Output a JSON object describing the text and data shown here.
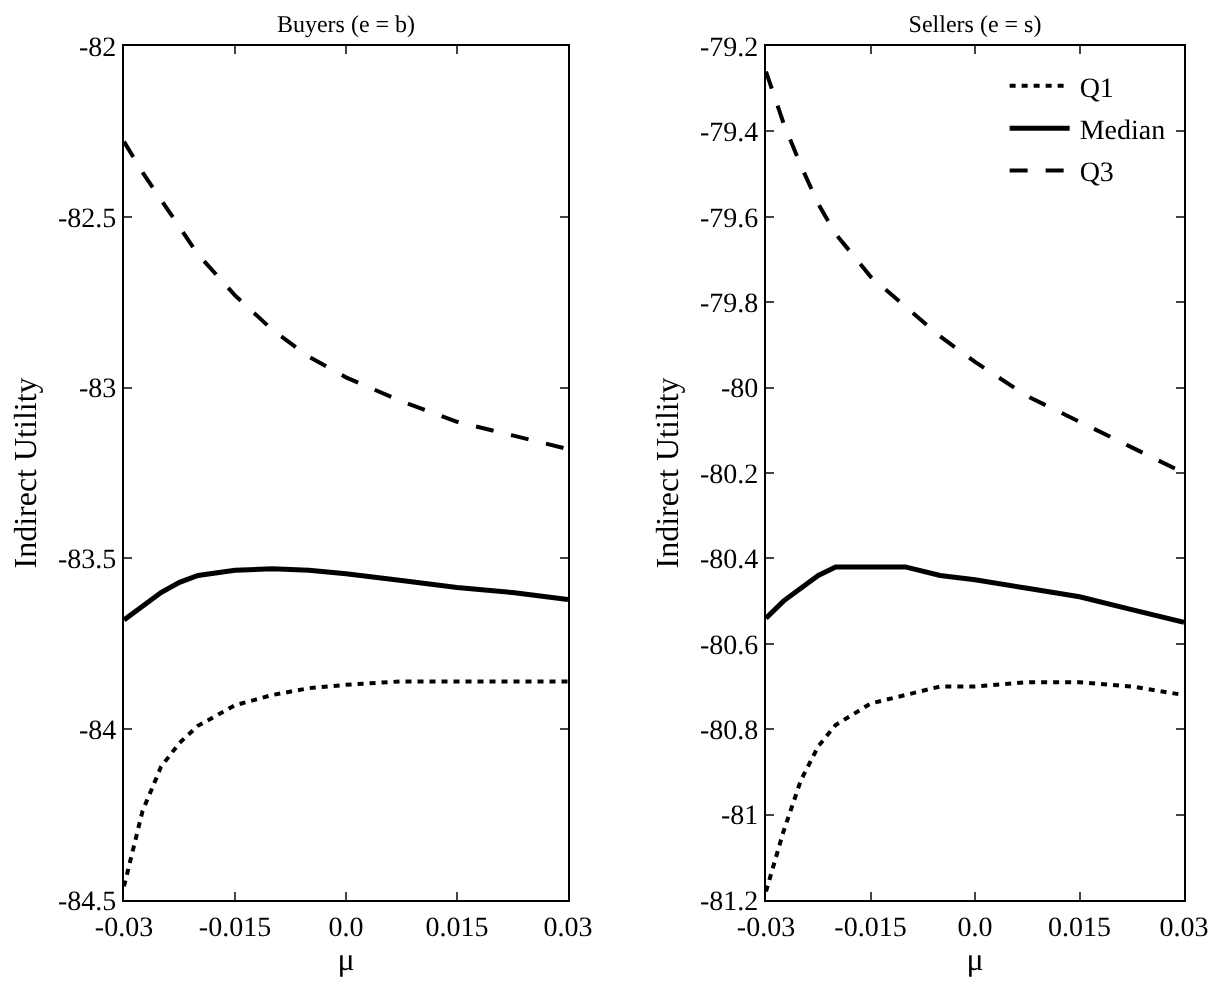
{
  "chart_data": [
    {
      "type": "line",
      "title": "Buyers (e = b)",
      "xlabel": "μ",
      "ylabel": "Indirect Utility",
      "xlim": [
        -0.03,
        0.03
      ],
      "xticks": [
        {
          "value": -0.03,
          "label": "-0.03"
        },
        {
          "value": -0.015,
          "label": "-0.015"
        },
        {
          "value": 0,
          "label": "0.0"
        },
        {
          "value": 0.015,
          "label": "0.015"
        },
        {
          "value": 0.03,
          "label": "0.03"
        }
      ],
      "ylim": [
        -84.5,
        -82
      ],
      "yticks": [
        -84.5,
        -84,
        -83.5,
        -83,
        -82.5,
        -82
      ],
      "grid": false,
      "legend": false,
      "marker": "none",
      "series": [
        {
          "color": "#000000",
          "line_style": "dotted",
          "x": [
            -0.03,
            -0.0275,
            -0.025,
            -0.0225,
            -0.02,
            -0.015,
            -0.01,
            -0.005,
            0,
            0.0075,
            0.015,
            0.0225,
            0.03
          ],
          "values": [
            -84.46,
            -84.24,
            -84.11,
            -84.04,
            -83.99,
            -83.93,
            -83.9,
            -83.88,
            -83.87,
            -83.86,
            -83.86,
            -83.86,
            -83.86
          ]
        },
        {
          "color": "#000000",
          "line_style": "solid",
          "x": [
            -0.03,
            -0.0275,
            -0.025,
            -0.0225,
            -0.02,
            -0.015,
            -0.01,
            -0.005,
            0,
            0.0075,
            0.015,
            0.0225,
            0.03
          ],
          "values": [
            -83.68,
            -83.64,
            -83.6,
            -83.57,
            -83.55,
            -83.535,
            -83.53,
            -83.535,
            -83.545,
            -83.565,
            -83.585,
            -83.6,
            -83.62
          ]
        },
        {
          "color": "#000000",
          "line_style": "dashed",
          "x": [
            -0.03,
            -0.0275,
            -0.025,
            -0.0225,
            -0.02,
            -0.015,
            -0.01,
            -0.005,
            0,
            0.0075,
            0.015,
            0.0225,
            0.03
          ],
          "values": [
            -82.28,
            -82.37,
            -82.45,
            -82.53,
            -82.61,
            -82.73,
            -82.83,
            -82.91,
            -82.97,
            -83.04,
            -83.1,
            -83.14,
            -83.18
          ]
        }
      ]
    },
    {
      "type": "line",
      "title": "Sellers (e = s)",
      "xlabel": "μ",
      "ylabel": "Indirect Utility",
      "xlim": [
        -0.03,
        0.03
      ],
      "xticks": [
        {
          "value": -0.03,
          "label": "-0.03"
        },
        {
          "value": -0.015,
          "label": "-0.015"
        },
        {
          "value": 0,
          "label": "0.0"
        },
        {
          "value": 0.015,
          "label": "0.015"
        },
        {
          "value": 0.03,
          "label": "0.03"
        }
      ],
      "ylim": [
        -81.2,
        -79.2
      ],
      "yticks": [
        -81.2,
        -81,
        -80.8,
        -80.6,
        -80.4,
        -80.2,
        -80,
        -79.8,
        -79.6,
        -79.4,
        -79.2
      ],
      "grid": false,
      "legend": "top right",
      "marker": "none",
      "series": [
        {
          "name": "Q1",
          "color": "#000000",
          "line_style": "dotted",
          "x": [
            -0.03,
            -0.0275,
            -0.025,
            -0.0225,
            -0.02,
            -0.015,
            -0.01,
            -0.005,
            0,
            0.0075,
            0.015,
            0.0225,
            0.03
          ],
          "values": [
            -81.18,
            -81.04,
            -80.92,
            -80.84,
            -80.79,
            -80.74,
            -80.72,
            -80.7,
            -80.7,
            -80.69,
            -80.69,
            -80.7,
            -80.72
          ]
        },
        {
          "name": "Median",
          "color": "#000000",
          "line_style": "solid",
          "x": [
            -0.03,
            -0.0275,
            -0.025,
            -0.0225,
            -0.02,
            -0.015,
            -0.01,
            -0.005,
            0,
            0.0075,
            0.015,
            0.0225,
            0.03
          ],
          "values": [
            -80.54,
            -80.5,
            -80.47,
            -80.44,
            -80.42,
            -80.42,
            -80.42,
            -80.44,
            -80.45,
            -80.47,
            -80.49,
            -80.52,
            -80.55
          ]
        },
        {
          "name": "Q3",
          "color": "#000000",
          "line_style": "dashed",
          "x": [
            -0.03,
            -0.0275,
            -0.025,
            -0.0225,
            -0.02,
            -0.015,
            -0.01,
            -0.005,
            0,
            0.0075,
            0.015,
            0.0225,
            0.03
          ],
          "values": [
            -79.26,
            -79.38,
            -79.48,
            -79.57,
            -79.64,
            -79.74,
            -79.81,
            -79.88,
            -79.94,
            -80.02,
            -80.08,
            -80.14,
            -80.2
          ]
        }
      ]
    }
  ]
}
